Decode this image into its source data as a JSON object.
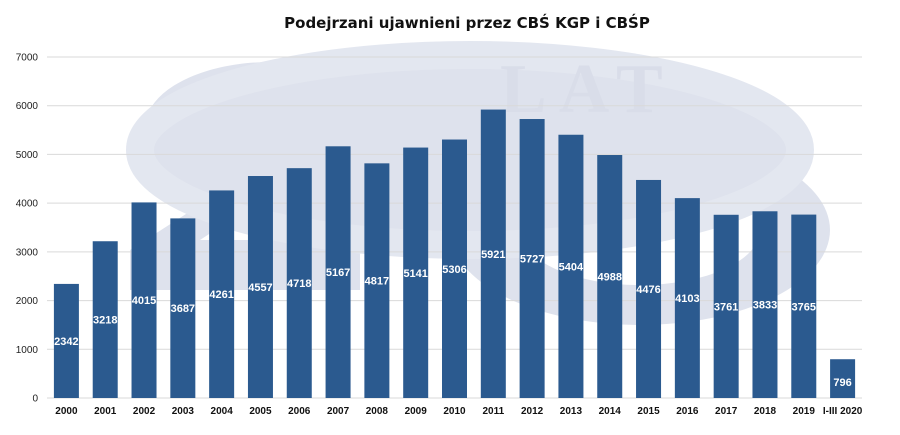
{
  "chart_data": {
    "type": "bar",
    "title": "Podejrzani ujawnieni przez CBŚ KGP i CBŚP",
    "xlabel": "",
    "ylabel": "",
    "categories": [
      "2000",
      "2001",
      "2002",
      "2003",
      "2004",
      "2005",
      "2006",
      "2007",
      "2008",
      "2009",
      "2010",
      "2011",
      "2012",
      "2013",
      "2014",
      "2015",
      "2016",
      "2017",
      "2018",
      "2019",
      "I-III 2020"
    ],
    "values": [
      2342,
      3218,
      4015,
      3687,
      4261,
      4557,
      4718,
      5167,
      4817,
      5141,
      5306,
      5921,
      5727,
      5404,
      4988,
      4476,
      4103,
      3761,
      3833,
      3765,
      796
    ],
    "data_labels": [
      "2342",
      "3218",
      "4015",
      "3687",
      "4261",
      "4557",
      "4718",
      "5167",
      "4817",
      "5141",
      "5306",
      "5921",
      "5727",
      "5404",
      "4988",
      "4476",
      "4103",
      "3761",
      "3833",
      "3765",
      "796"
    ],
    "ylim": [
      0,
      7000
    ],
    "yticks": [
      0,
      1000,
      2000,
      3000,
      4000,
      5000,
      6000,
      7000
    ],
    "grid": true,
    "legend": "none",
    "bar_color": "#2b5a8f",
    "watermark_text": "LAT"
  }
}
